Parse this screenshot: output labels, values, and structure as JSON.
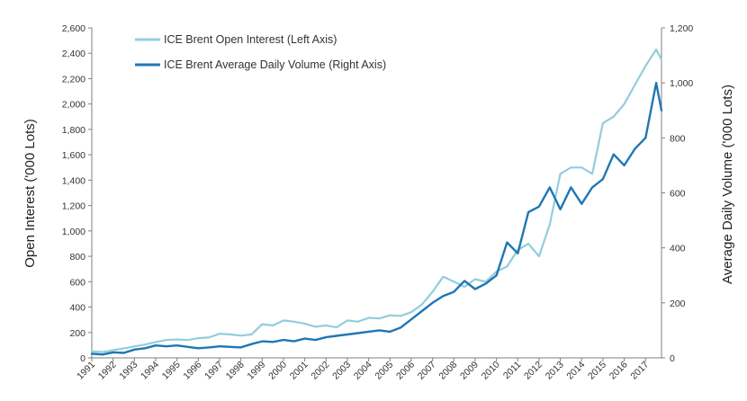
{
  "chart_data": {
    "type": "line",
    "title": "",
    "left_axis": {
      "label": "Open Interest ('000 Lots)",
      "ylim": [
        0,
        2600
      ],
      "ticks": [
        "0",
        "200",
        "400",
        "600",
        "800",
        "1,000",
        "1,200",
        "1,400",
        "1,600",
        "1,800",
        "2,000",
        "2,200",
        "2,400",
        "2,600"
      ]
    },
    "right_axis": {
      "label": "Average Daily Volume ('000 Lots)",
      "ylim": [
        0,
        1200
      ],
      "ticks": [
        "0",
        "200",
        "400",
        "600",
        "800",
        "1,000",
        "1,200"
      ]
    },
    "x_axis": {
      "xlim": [
        1991.0,
        2017.75
      ],
      "ticks": [
        "1991",
        "1992",
        "1993",
        "1994",
        "1995",
        "1996",
        "1997",
        "1998",
        "1999",
        "2000",
        "2001",
        "2002",
        "2003",
        "2004",
        "2005",
        "2006",
        "2007",
        "2008",
        "2009",
        "2010",
        "2011",
        "2012",
        "2013",
        "2014",
        "2015",
        "2016",
        "2017"
      ]
    },
    "grid": false,
    "legend_position": "top-left",
    "series": [
      {
        "name": "ICE Brent Open Interest (Left Axis)",
        "axis": "left",
        "color": "#93cddd",
        "x": [
          1991.0,
          1991.5,
          1992.0,
          1992.5,
          1993.0,
          1993.5,
          1994.0,
          1994.5,
          1995.0,
          1995.5,
          1996.0,
          1996.5,
          1997.0,
          1997.5,
          1998.0,
          1998.5,
          1999.0,
          1999.5,
          2000.0,
          2000.5,
          2001.0,
          2001.5,
          2002.0,
          2002.5,
          2003.0,
          2003.5,
          2004.0,
          2004.5,
          2005.0,
          2005.5,
          2006.0,
          2006.5,
          2007.0,
          2007.5,
          2008.0,
          2008.5,
          2009.0,
          2009.5,
          2010.0,
          2010.5,
          2011.0,
          2011.5,
          2012.0,
          2012.5,
          2013.0,
          2013.5,
          2014.0,
          2014.5,
          2015.0,
          2015.5,
          2016.0,
          2016.5,
          2017.0,
          2017.5,
          2017.75
        ],
        "values": [
          50,
          45,
          60,
          75,
          90,
          105,
          125,
          140,
          145,
          140,
          155,
          160,
          190,
          185,
          175,
          185,
          265,
          255,
          295,
          285,
          270,
          245,
          255,
          240,
          295,
          285,
          315,
          310,
          335,
          330,
          360,
          420,
          520,
          640,
          600,
          560,
          620,
          600,
          680,
          720,
          850,
          900,
          800,
          1050,
          1450,
          1500,
          1500,
          1450,
          1850,
          1900,
          2000,
          2150,
          2300,
          2430,
          2350
        ]
      },
      {
        "name": "ICE Brent Average Daily Volume (Right Axis)",
        "axis": "right",
        "color": "#1f77b4",
        "x": [
          1991.0,
          1991.5,
          1992.0,
          1992.5,
          1993.0,
          1993.5,
          1994.0,
          1994.5,
          1995.0,
          1995.5,
          1996.0,
          1996.5,
          1997.0,
          1997.5,
          1998.0,
          1998.5,
          1999.0,
          1999.5,
          2000.0,
          2000.5,
          2001.0,
          2001.5,
          2002.0,
          2002.5,
          2003.0,
          2003.5,
          2004.0,
          2004.5,
          2005.0,
          2005.5,
          2006.0,
          2006.5,
          2007.0,
          2007.5,
          2008.0,
          2008.5,
          2009.0,
          2009.5,
          2010.0,
          2010.5,
          2011.0,
          2011.5,
          2012.0,
          2012.5,
          2013.0,
          2013.5,
          2014.0,
          2014.5,
          2015.0,
          2015.5,
          2016.0,
          2016.5,
          2017.0,
          2017.5,
          2017.75
        ],
        "values": [
          15,
          12,
          20,
          18,
          30,
          35,
          45,
          42,
          45,
          40,
          35,
          38,
          42,
          40,
          38,
          50,
          60,
          58,
          65,
          60,
          70,
          65,
          75,
          80,
          85,
          90,
          95,
          100,
          95,
          110,
          140,
          170,
          200,
          225,
          240,
          280,
          250,
          270,
          300,
          420,
          380,
          530,
          550,
          620,
          540,
          620,
          560,
          620,
          650,
          740,
          700,
          760,
          800,
          1000,
          900
        ]
      }
    ]
  }
}
